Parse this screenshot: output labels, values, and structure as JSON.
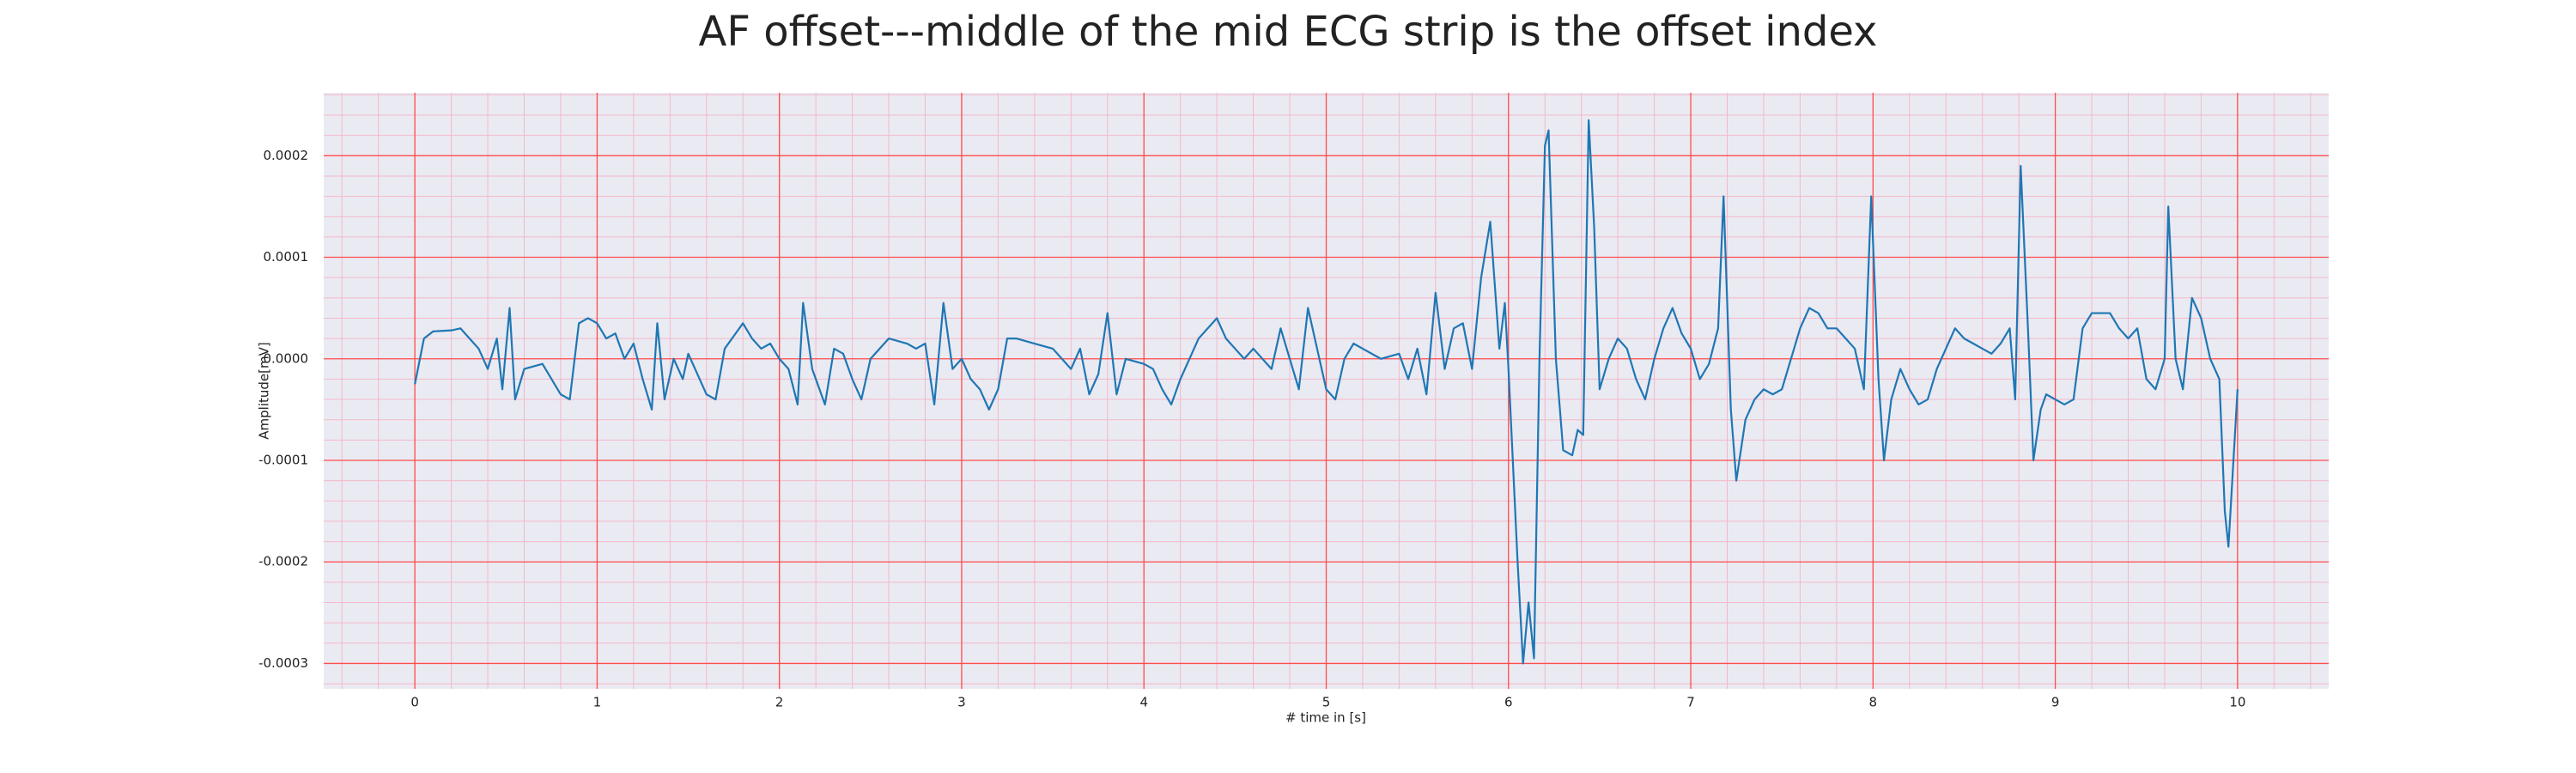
{
  "chart_data": {
    "type": "line",
    "title": "AF offset---middle of the mid ECG strip is the offset index",
    "xlabel": "# time in [s]",
    "ylabel": "Amplitude[mV]",
    "color": "#1f77b4",
    "grid": true,
    "grid_color": "#ff4d4d",
    "minor_grid_color": "#f4b8c8",
    "background": "#eaeaf2",
    "xlim": [
      -0.5,
      10.5
    ],
    "ylim": [
      -0.000325,
      0.000262
    ],
    "xticks": [
      0,
      1,
      2,
      3,
      4,
      5,
      6,
      7,
      8,
      9,
      10
    ],
    "yticks": [
      -0.0003,
      -0.0002,
      -0.0001,
      {
        "value": 0,
        "label": "0.0000"
      },
      0.0001,
      0.0002
    ],
    "xminorticks": [
      -0.4,
      -0.2,
      0,
      0.2,
      0.4,
      0.6,
      0.8,
      1,
      1.2,
      1.4,
      1.6,
      1.8,
      2,
      2.2,
      2.4,
      2.6,
      2.8,
      3,
      3.2,
      3.4,
      3.6,
      3.8,
      4,
      4.2,
      4.4,
      4.6,
      4.8,
      5,
      5.2,
      5.4,
      5.6,
      5.8,
      6,
      6.2,
      6.4,
      6.6,
      6.8,
      7,
      7.2,
      7.4,
      7.6,
      7.8,
      8,
      8.2,
      8.4,
      8.6,
      8.8,
      9,
      9.2,
      9.4,
      9.6,
      9.8,
      10,
      10.2,
      10.4
    ],
    "yminorticks": [
      -0.00032,
      -0.0003,
      -0.00028,
      -0.00026,
      -0.00024,
      -0.00022,
      -0.0002,
      -0.00018,
      -0.00016,
      -0.00014,
      -0.00012,
      -0.0001,
      -8e-05,
      -6e-05,
      -4e-05,
      -2e-05,
      0,
      2e-05,
      4e-05,
      6e-05,
      8e-05,
      0.0001,
      0.00012,
      0.00014,
      0.00016,
      0.00018,
      0.0002,
      0.00022,
      0.00024,
      0.00026
    ],
    "x": [
      0,
      0.05,
      0.1,
      0.2,
      0.25,
      0.3,
      0.35,
      0.4,
      0.45,
      0.48,
      0.52,
      0.55,
      0.6,
      0.7,
      0.8,
      0.85,
      0.9,
      0.95,
      1.0,
      1.05,
      1.1,
      1.15,
      1.2,
      1.25,
      1.3,
      1.33,
      1.37,
      1.42,
      1.47,
      1.5,
      1.6,
      1.65,
      1.7,
      1.8,
      1.85,
      1.9,
      1.95,
      2.0,
      2.05,
      2.1,
      2.13,
      2.18,
      2.25,
      2.3,
      2.35,
      2.4,
      2.45,
      2.5,
      2.6,
      2.7,
      2.75,
      2.8,
      2.85,
      2.9,
      2.95,
      3.0,
      3.05,
      3.1,
      3.15,
      3.2,
      3.25,
      3.3,
      3.4,
      3.5,
      3.6,
      3.65,
      3.7,
      3.75,
      3.8,
      3.85,
      3.9,
      4.0,
      4.05,
      4.1,
      4.15,
      4.2,
      4.3,
      4.4,
      4.45,
      4.5,
      4.55,
      4.6,
      4.7,
      4.75,
      4.8,
      4.85,
      4.9,
      4.95,
      5.0,
      5.05,
      5.1,
      5.15,
      5.2,
      5.3,
      5.4,
      5.45,
      5.5,
      5.55,
      5.6,
      5.65,
      5.7,
      5.75,
      5.8,
      5.85,
      5.9,
      5.95,
      5.98,
      6.0,
      6.05,
      6.08,
      6.11,
      6.14,
      6.17,
      6.2,
      6.22,
      6.26,
      6.3,
      6.35,
      6.38,
      6.41,
      6.44,
      6.47,
      6.5,
      6.55,
      6.6,
      6.65,
      6.7,
      6.75,
      6.8,
      6.85,
      6.9,
      6.95,
      7.0,
      7.05,
      7.1,
      7.15,
      7.18,
      7.22,
      7.25,
      7.3,
      7.35,
      7.4,
      7.45,
      7.5,
      7.55,
      7.6,
      7.65,
      7.7,
      7.75,
      7.8,
      7.85,
      7.9,
      7.95,
      7.99,
      8.03,
      8.06,
      8.1,
      8.15,
      8.2,
      8.25,
      8.3,
      8.35,
      8.45,
      8.5,
      8.55,
      8.6,
      8.65,
      8.7,
      8.75,
      8.78,
      8.81,
      8.85,
      8.88,
      8.92,
      8.95,
      9.0,
      9.05,
      9.1,
      9.15,
      9.2,
      9.25,
      9.3,
      9.35,
      9.4,
      9.45,
      9.5,
      9.55,
      9.6,
      9.62,
      9.66,
      9.7,
      9.75,
      9.8,
      9.85,
      9.9,
      9.93,
      9.95,
      10.0
    ],
    "values": [
      -2.5e-05,
      2e-05,
      2.7e-05,
      2.8e-05,
      3e-05,
      2e-05,
      1e-05,
      -1e-05,
      2e-05,
      -3e-05,
      5e-05,
      -4e-05,
      -1e-05,
      -5e-06,
      -3.5e-05,
      -4e-05,
      3.5e-05,
      4e-05,
      3.5e-05,
      2e-05,
      2.5e-05,
      0,
      1.5e-05,
      -2e-05,
      -5e-05,
      3.5e-05,
      -4e-05,
      0,
      -2e-05,
      5e-06,
      -3.5e-05,
      -4e-05,
      1e-05,
      3.5e-05,
      2e-05,
      1e-05,
      1.5e-05,
      0,
      -1e-05,
      -4.5e-05,
      5.5e-05,
      -1e-05,
      -4.5e-05,
      1e-05,
      5e-06,
      -2e-05,
      -4e-05,
      0,
      2e-05,
      1.5e-05,
      1e-05,
      1.5e-05,
      -4.5e-05,
      5.5e-05,
      -1e-05,
      0,
      -2e-05,
      -3e-05,
      -5e-05,
      -3e-05,
      2e-05,
      2e-05,
      1.5e-05,
      1e-05,
      -1e-05,
      1e-05,
      -3.5e-05,
      -1.5e-05,
      4.5e-05,
      -3.5e-05,
      0,
      -5e-06,
      -1e-05,
      -3e-05,
      -4.5e-05,
      -2e-05,
      2e-05,
      4e-05,
      2e-05,
      1e-05,
      0,
      1e-05,
      -1e-05,
      3e-05,
      0,
      -3e-05,
      5e-05,
      1e-05,
      -3e-05,
      -4e-05,
      0,
      1.5e-05,
      1e-05,
      0,
      5e-06,
      -2e-05,
      1e-05,
      -3.5e-05,
      6.5e-05,
      -1e-05,
      3e-05,
      3.5e-05,
      -1e-05,
      8e-05,
      0.000135,
      1e-05,
      5.5e-05,
      -1e-05,
      -0.0002,
      -0.0003,
      -0.00024,
      -0.000295,
      0,
      0.00021,
      0.000225,
      0,
      -9e-05,
      -9.5e-05,
      -7e-05,
      -7.5e-05,
      0.000235,
      0.00013,
      -3e-05,
      0,
      2e-05,
      1e-05,
      -2e-05,
      -4e-05,
      0,
      3e-05,
      5e-05,
      2.5e-05,
      1e-05,
      -2e-05,
      -5e-06,
      3e-05,
      0.00016,
      -5e-05,
      -0.00012,
      -6e-05,
      -4e-05,
      -3e-05,
      -3.5e-05,
      -3e-05,
      0,
      3e-05,
      5e-05,
      4.5e-05,
      3e-05,
      3e-05,
      2e-05,
      1e-05,
      -3e-05,
      0.00016,
      -2e-05,
      -0.0001,
      -4e-05,
      -1e-05,
      -3e-05,
      -4.5e-05,
      -4e-05,
      -1e-05,
      3e-05,
      2e-05,
      1.5e-05,
      1e-05,
      5e-06,
      1.5e-05,
      3e-05,
      -4e-05,
      0.00019,
      3e-05,
      -0.0001,
      -5e-05,
      -3.5e-05,
      -4e-05,
      -4.5e-05,
      -4e-05,
      3e-05,
      4.5e-05,
      4.5e-05,
      4.5e-05,
      3e-05,
      2e-05,
      3e-05,
      -2e-05,
      -3e-05,
      0,
      0.00015,
      0,
      -3e-05,
      6e-05,
      4e-05,
      0,
      -2e-05,
      -0.00015,
      -0.000185,
      -3e-05
    ]
  }
}
